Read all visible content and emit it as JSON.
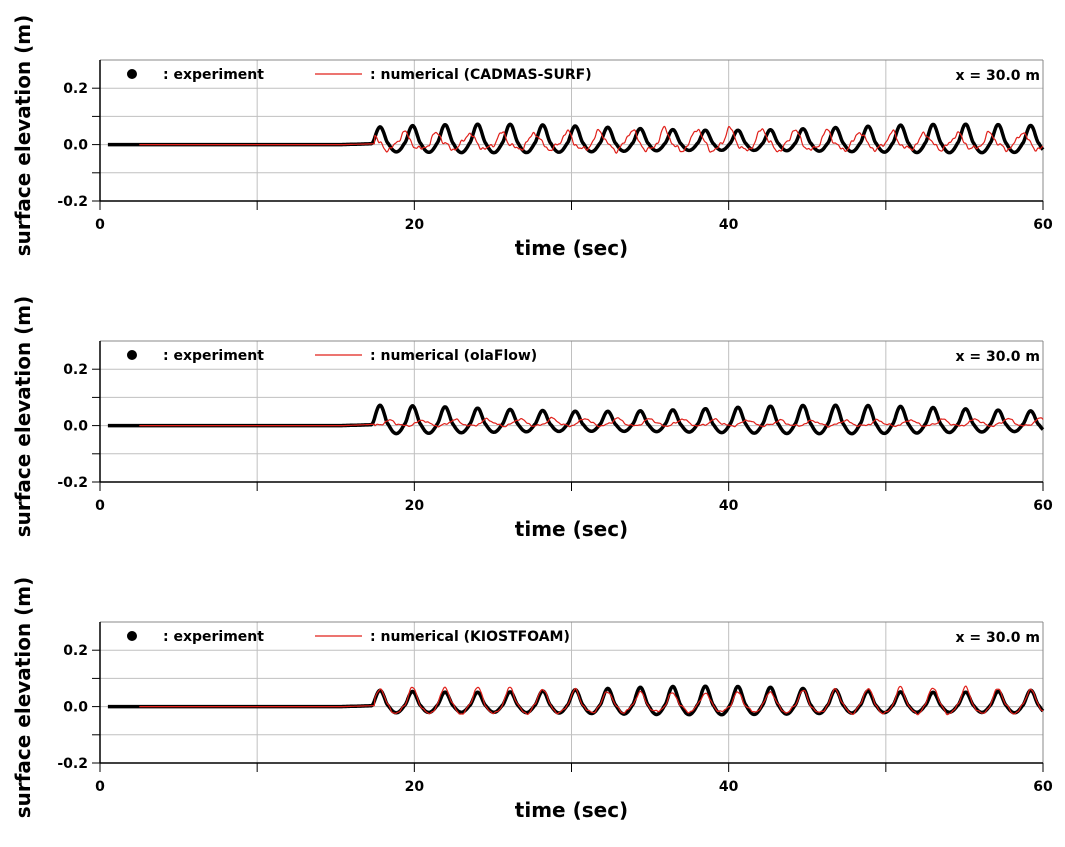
{
  "colors": {
    "experiment": "#000000",
    "numerical": "#e0201a",
    "grid": "#c0c0c0",
    "axis": "#000000"
  },
  "chart_data": [
    {
      "type": "line",
      "xlabel": "time (sec)",
      "ylabel": "surface elevation (m)",
      "xlim": [
        0,
        60
      ],
      "ylim": [
        -0.2,
        0.3
      ],
      "xticks": [
        0,
        20,
        40,
        60
      ],
      "xtick_labels": [
        "0",
        "20",
        "40",
        "60"
      ],
      "yticks": [
        -0.2,
        0.0,
        0.2
      ],
      "ytick_labels": [
        "-0.2",
        "0.0",
        "0.2"
      ],
      "grid": true,
      "legend_position": "top-left",
      "annotation": "x = 30.0 m",
      "series": [
        {
          "name": ": experiment",
          "marker": "circle",
          "wave": {
            "onset": 17.3,
            "period": 2.07,
            "amplitude": 0.045,
            "offset": 0.005,
            "phase": 0.0
          }
        },
        {
          "name": ": numerical (CADMAS-SURF)",
          "marker": "line",
          "wave": {
            "onset": 17.5,
            "period": 2.07,
            "amplitude": 0.035,
            "offset": 0.005,
            "phase": 0.35,
            "noise": 0.02
          }
        }
      ]
    },
    {
      "type": "line",
      "xlabel": "time (sec)",
      "ylabel": "surface elevation (m)",
      "xlim": [
        0,
        60
      ],
      "ylim": [
        -0.2,
        0.3
      ],
      "xticks": [
        0,
        20,
        40,
        60
      ],
      "xtick_labels": [
        "0",
        "20",
        "40",
        "60"
      ],
      "yticks": [
        -0.2,
        0.0,
        0.2
      ],
      "ytick_labels": [
        "-0.2",
        "0.0",
        "0.2"
      ],
      "grid": true,
      "legend_position": "top-left",
      "annotation": "x = 30.0 m",
      "series": [
        {
          "name": ": experiment",
          "marker": "circle",
          "wave": {
            "onset": 17.3,
            "period": 2.07,
            "amplitude": 0.045,
            "offset": 0.005,
            "phase": 0.0
          }
        },
        {
          "name": ": numerical (olaFlow)",
          "marker": "line",
          "wave": {
            "onset": 17.5,
            "period": 2.07,
            "amplitude": 0.012,
            "offset": 0.008,
            "phase": 0.8,
            "noise": 0.008
          }
        }
      ]
    },
    {
      "type": "line",
      "xlabel": "time (sec)",
      "ylabel": "surface elevation (m)",
      "xlim": [
        0,
        60
      ],
      "ylim": [
        -0.2,
        0.3
      ],
      "xticks": [
        0,
        20,
        40,
        60
      ],
      "xtick_labels": [
        "0",
        "20",
        "40",
        "60"
      ],
      "yticks": [
        -0.2,
        0.0,
        0.2
      ],
      "ytick_labels": [
        "-0.2",
        "0.0",
        "0.2"
      ],
      "grid": true,
      "legend_position": "top-left",
      "annotation": "x = 30.0 m",
      "series": [
        {
          "name": ": experiment",
          "marker": "circle",
          "wave": {
            "onset": 17.3,
            "period": 2.07,
            "amplitude": 0.045,
            "offset": 0.005,
            "phase": 0.0
          }
        },
        {
          "name": ": numerical (KIOSTFOAM)",
          "marker": "line",
          "wave": {
            "onset": 17.5,
            "period": 2.07,
            "amplitude": 0.042,
            "offset": 0.006,
            "phase": 0.1,
            "noise": 0.01
          }
        }
      ]
    }
  ]
}
